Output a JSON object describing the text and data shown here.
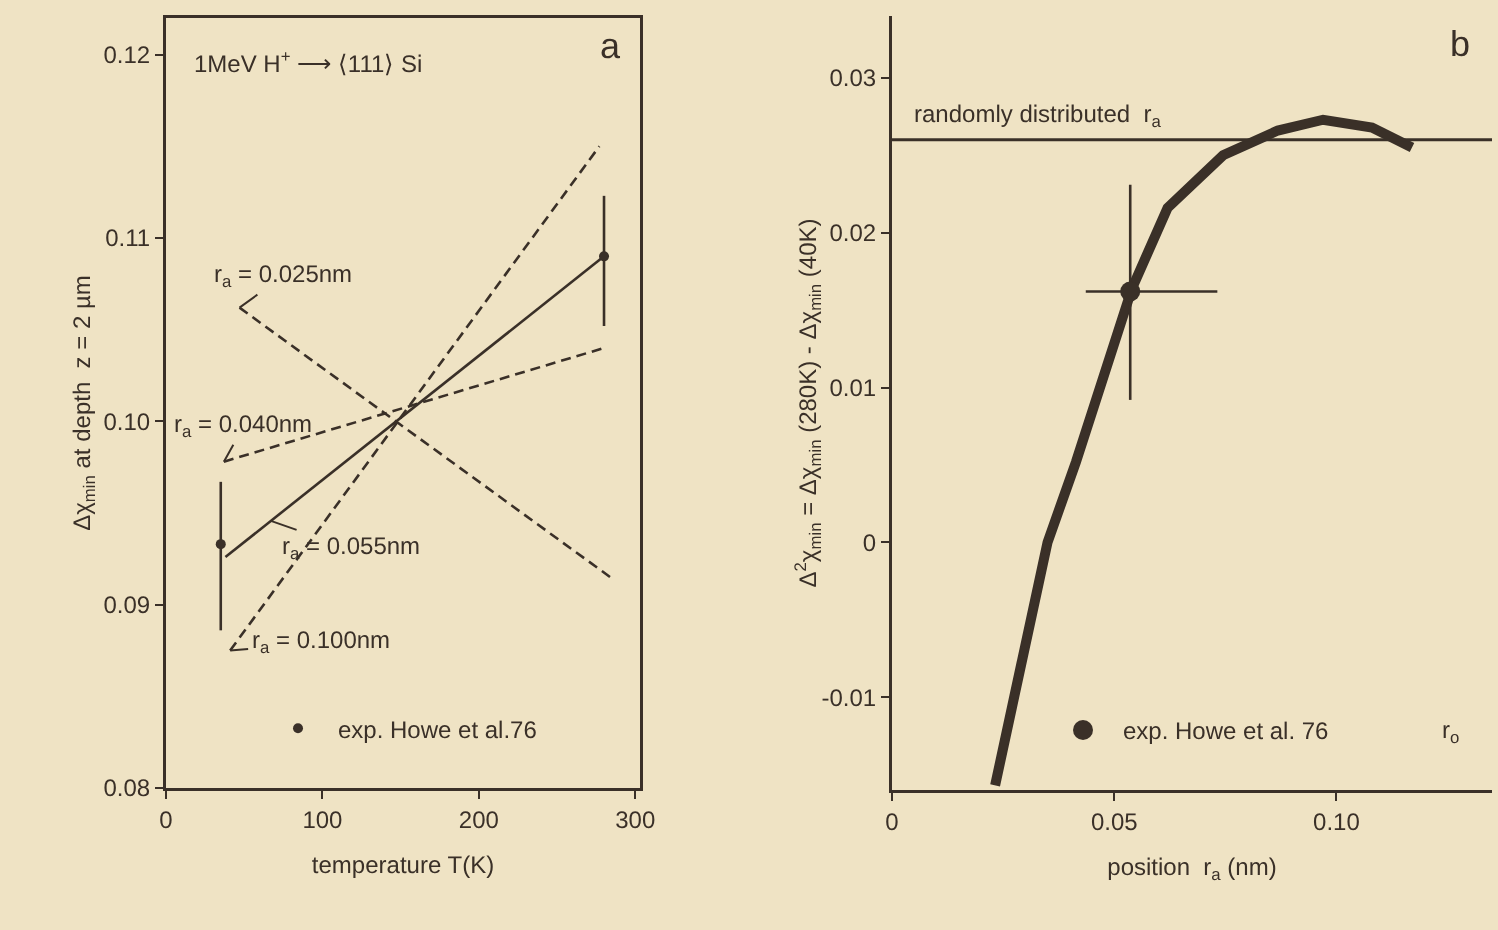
{
  "chart_data": [
    {
      "type": "line",
      "title": null,
      "xlabel": "temperature T(K)",
      "ylabel": "Δχ$_{min}$ at depth  z = 2 µm",
      "annotations": [
        "1MeV H$^{+}$ ⟶ ⟨111⟩ Si",
        "a"
      ],
      "xlim": [
        0,
        303
      ],
      "xticks": [
        0,
        100,
        200,
        300
      ],
      "ylim": [
        0.08,
        0.122
      ],
      "yticks": [
        {
          "value": 0.08,
          "label": "0.08"
        },
        {
          "value": 0.09,
          "label": "0.09"
        },
        {
          "value": 0.1,
          "label": "0.10"
        },
        {
          "value": 0.11,
          "label": "0.11"
        },
        {
          "value": 0.12,
          "label": "0.12"
        }
      ],
      "grid": false,
      "legend": "bottom",
      "series": [
        {
          "name": "r$_{a}$ = 0.025nm",
          "line_style": "dashed",
          "color": "#3a3028",
          "x": [
            47,
            284
          ],
          "values": [
            0.1062,
            0.0915
          ]
        },
        {
          "name": "r$_{a}$ = 0.040nm",
          "line_style": "dashed",
          "color": "#3a3028",
          "x": [
            37,
            280
          ],
          "values": [
            0.0978,
            0.104
          ]
        },
        {
          "name": "r$_{a}$ = 0.055nm",
          "line_style": "solid",
          "color": "#3a3028",
          "x": [
            38,
            280
          ],
          "values": [
            0.0926,
            0.109
          ]
        },
        {
          "name": "r$_{a}$ = 0.100nm",
          "line_style": "dashed",
          "color": "#3a3028",
          "x": [
            41,
            277
          ],
          "values": [
            0.0875,
            0.115
          ]
        },
        {
          "name": "exp. Howe et al.76",
          "type": "scatter",
          "marker": "circle",
          "color": "#3a3028",
          "x": [
            35,
            280
          ],
          "values": [
            0.0933,
            0.109
          ],
          "errors": [
            [
              0.0886,
              0.0967
            ],
            [
              0.1052,
              0.1123
            ]
          ]
        }
      ]
    },
    {
      "type": "line",
      "title": null,
      "xlabel": "position  r$_{a}$ (nm)",
      "ylabel": "Δ$^{2}$χ$_{min}$ = Δχ$_{min}$ (280K) - Δχ$_{min}$ (40K)",
      "annotations": [
        "b",
        "r$_{o}$"
      ],
      "xlim": [
        0,
        0.135
      ],
      "xticks": [
        0,
        {
          "value": 0.05,
          "label": "0.05"
        },
        {
          "value": 0.1,
          "label": "0.10"
        }
      ],
      "ylim": [
        -0.016,
        0.034
      ],
      "yticks": [
        {
          "value": -0.01,
          "label": "-0.01"
        },
        0,
        {
          "value": 0.01,
          "label": "0.01"
        },
        {
          "value": 0.02,
          "label": "0.02"
        },
        {
          "value": 0.03,
          "label": "0.03"
        }
      ],
      "grid": false,
      "legend": "bottom",
      "ref_lines": [
        {
          "axis": "y",
          "value": 0.026,
          "label": "randomly distributed  r$_{a}$",
          "color": "#3a3028"
        }
      ],
      "series": [
        {
          "color": "#3a3028",
          "x": [
            0.0232,
            0.035,
            0.0414,
            0.054,
            0.062,
            0.0745,
            0.0868,
            0.097,
            0.108,
            0.117
          ],
          "values": [
            -0.0157,
            0,
            0.0052,
            0.0164,
            0.0216,
            0.025,
            0.0266,
            0.0273,
            0.0268,
            0.0255
          ]
        },
        {
          "name": "exp. Howe et al. 76",
          "type": "scatter",
          "marker": "circle",
          "color": "#3a3028",
          "x": [
            0.0536
          ],
          "values": [
            0.0162
          ],
          "errors": [
            [
              0.0092,
              0.0231
            ]
          ],
          "xerrors": [
            [
              0.0436,
              0.0732
            ]
          ]
        }
      ]
    }
  ]
}
